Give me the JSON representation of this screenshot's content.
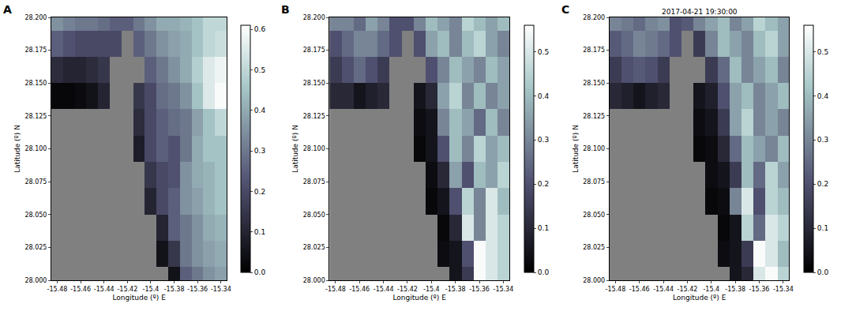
{
  "chart_data": [
    {
      "type": "heatmap",
      "panel": "A",
      "xlabel": "Longitude (º) E",
      "ylabel": "Latitude (º) N",
      "x": [
        -15.48,
        -15.47,
        -15.46,
        -15.45,
        -15.44,
        -15.43,
        -15.42,
        -15.41,
        -15.4,
        -15.39,
        -15.38,
        -15.37,
        -15.36,
        -15.35,
        -15.34
      ],
      "y": [
        28.0,
        28.02,
        28.04,
        28.06,
        28.08,
        28.1,
        28.12,
        28.14,
        28.16,
        28.18,
        28.2
      ],
      "z": [
        [
          null,
          null,
          null,
          null,
          null,
          null,
          null,
          null,
          null,
          null,
          0.05,
          0.25,
          0.3,
          0.35,
          0.38
        ],
        [
          null,
          null,
          null,
          null,
          null,
          null,
          null,
          null,
          null,
          0.05,
          0.15,
          0.3,
          0.35,
          0.38,
          0.4
        ],
        [
          null,
          null,
          null,
          null,
          null,
          null,
          null,
          null,
          null,
          0.1,
          0.25,
          0.3,
          0.35,
          0.4,
          0.42
        ],
        [
          null,
          null,
          null,
          null,
          null,
          null,
          null,
          null,
          0.1,
          0.2,
          0.25,
          0.35,
          0.38,
          0.42,
          0.45
        ],
        [
          null,
          null,
          null,
          null,
          null,
          null,
          null,
          null,
          0.15,
          0.2,
          0.22,
          0.35,
          0.4,
          0.42,
          0.45
        ],
        [
          null,
          null,
          null,
          null,
          null,
          null,
          null,
          0.08,
          0.2,
          0.25,
          0.22,
          0.3,
          0.4,
          0.45,
          0.45
        ],
        [
          null,
          null,
          null,
          null,
          null,
          null,
          null,
          0.12,
          0.2,
          0.25,
          0.28,
          0.3,
          0.38,
          0.45,
          0.5
        ],
        [
          0.02,
          0.02,
          0.03,
          0.05,
          0.1,
          null,
          null,
          0.15,
          0.2,
          0.28,
          0.3,
          0.35,
          0.45,
          0.55,
          0.6
        ],
        [
          0.12,
          0.1,
          0.1,
          0.12,
          0.15,
          null,
          null,
          null,
          0.25,
          0.3,
          0.35,
          0.4,
          0.48,
          0.55,
          0.58
        ],
        [
          0.25,
          0.22,
          0.2,
          0.2,
          0.2,
          0.2,
          null,
          0.25,
          0.3,
          0.35,
          0.38,
          0.4,
          0.45,
          0.5,
          0.52
        ],
        [
          0.35,
          0.32,
          0.3,
          0.3,
          0.28,
          0.25,
          0.25,
          0.3,
          0.35,
          0.4,
          0.4,
          0.42,
          0.45,
          0.5,
          0.5
        ]
      ],
      "xlim": [
        -15.485,
        -15.335
      ],
      "xticks": [
        -15.48,
        -15.46,
        -15.44,
        -15.42,
        -15.4,
        -15.38,
        -15.36,
        -15.34
      ],
      "ylim": [
        28.0,
        28.2
      ],
      "yticks": [
        {
          "value": 28.0,
          "label": "28.000"
        },
        28.025,
        {
          "value": 28.05,
          "label": "28.050"
        },
        28.075,
        {
          "value": 28.1,
          "label": "28.100"
        },
        28.125,
        {
          "value": 28.15,
          "label": "28.150"
        },
        28.175,
        {
          "value": 28.2,
          "label": "28.200"
        }
      ],
      "colorbar": {
        "range": [
          0,
          0.61
        ],
        "ticks": [
          {
            "value": 0,
            "label": "0.0"
          },
          0.1,
          0.2,
          0.3,
          0.4,
          0.5,
          0.6
        ]
      }
    },
    {
      "type": "heatmap",
      "panel": "B",
      "xlabel": "Longitude (º) E",
      "ylabel": "Latitude (º) N",
      "x": [
        -15.48,
        -15.47,
        -15.46,
        -15.45,
        -15.44,
        -15.43,
        -15.42,
        -15.41,
        -15.4,
        -15.39,
        -15.38,
        -15.37,
        -15.36,
        -15.35,
        -15.34
      ],
      "y": [
        28.0,
        28.02,
        28.04,
        28.06,
        28.08,
        28.1,
        28.12,
        28.14,
        28.16,
        28.18,
        28.2
      ],
      "z": [
        [
          null,
          null,
          null,
          null,
          null,
          null,
          null,
          null,
          null,
          null,
          0.05,
          0.15,
          0.55,
          0.5,
          0.45
        ],
        [
          null,
          null,
          null,
          null,
          null,
          null,
          null,
          null,
          null,
          0.03,
          0.05,
          0.2,
          0.55,
          0.5,
          0.45
        ],
        [
          null,
          null,
          null,
          null,
          null,
          null,
          null,
          null,
          null,
          0.02,
          0.1,
          0.5,
          0.3,
          0.5,
          0.45
        ],
        [
          null,
          null,
          null,
          null,
          null,
          null,
          null,
          null,
          0.02,
          0.05,
          0.2,
          0.45,
          0.3,
          0.5,
          0.4
        ],
        [
          null,
          null,
          null,
          null,
          null,
          null,
          null,
          null,
          0.03,
          0.1,
          0.35,
          0.2,
          0.4,
          0.35,
          0.45
        ],
        [
          null,
          null,
          null,
          null,
          null,
          null,
          null,
          0.02,
          0.05,
          0.2,
          0.4,
          0.3,
          0.45,
          0.35,
          0.4
        ],
        [
          null,
          null,
          null,
          null,
          null,
          null,
          null,
          0.03,
          0.05,
          0.3,
          0.4,
          0.35,
          0.25,
          0.4,
          0.3
        ],
        [
          0.1,
          0.1,
          0.05,
          0.08,
          0.1,
          null,
          null,
          0.05,
          0.1,
          0.35,
          0.45,
          0.3,
          0.4,
          0.3,
          0.35
        ],
        [
          0.15,
          0.2,
          0.25,
          0.2,
          0.15,
          null,
          null,
          null,
          0.2,
          0.3,
          0.4,
          0.35,
          0.3,
          0.4,
          0.35
        ],
        [
          0.2,
          0.25,
          0.3,
          0.3,
          0.25,
          0.2,
          null,
          0.2,
          0.35,
          0.4,
          0.3,
          0.4,
          0.45,
          0.35,
          0.3
        ],
        [
          0.3,
          0.3,
          0.25,
          0.35,
          0.3,
          0.2,
          0.2,
          0.3,
          0.4,
          0.35,
          0.3,
          0.45,
          0.4,
          0.35,
          0.4
        ]
      ],
      "xlim": [
        -15.485,
        -15.335
      ],
      "xticks": [
        -15.48,
        -15.46,
        -15.44,
        -15.42,
        -15.4,
        -15.38,
        -15.36,
        -15.34
      ],
      "ylim": [
        28.0,
        28.2
      ],
      "yticks": [
        {
          "value": 28.0,
          "label": "28.000"
        },
        28.025,
        {
          "value": 28.05,
          "label": "28.050"
        },
        28.075,
        {
          "value": 28.1,
          "label": "28.100"
        },
        28.125,
        {
          "value": 28.15,
          "label": "28.150"
        },
        28.175,
        {
          "value": 28.2,
          "label": "28.200"
        }
      ],
      "colorbar": {
        "range": [
          0,
          0.56
        ],
        "ticks": [
          {
            "value": 0,
            "label": "0.0"
          },
          0.1,
          0.2,
          0.3,
          0.4,
          0.5
        ]
      }
    },
    {
      "type": "heatmap",
      "panel": "C",
      "title": "2017-04-21 19:30:00",
      "xlabel": "Longitude (º) E",
      "ylabel": "Latitude (º) N",
      "x": [
        -15.48,
        -15.47,
        -15.46,
        -15.45,
        -15.44,
        -15.43,
        -15.42,
        -15.41,
        -15.4,
        -15.39,
        -15.38,
        -15.37,
        -15.36,
        -15.35,
        -15.34
      ],
      "y": [
        28.0,
        28.02,
        28.04,
        28.06,
        28.08,
        28.1,
        28.12,
        28.14,
        28.16,
        28.18,
        28.2
      ],
      "z": [
        [
          null,
          null,
          null,
          null,
          null,
          null,
          null,
          null,
          null,
          null,
          0.05,
          0.1,
          0.5,
          0.55,
          0.45
        ],
        [
          null,
          null,
          null,
          null,
          null,
          null,
          null,
          null,
          null,
          0.03,
          0.05,
          0.15,
          0.55,
          0.5,
          0.4
        ],
        [
          null,
          null,
          null,
          null,
          null,
          null,
          null,
          null,
          null,
          0.02,
          0.05,
          0.45,
          0.25,
          0.5,
          0.45
        ],
        [
          null,
          null,
          null,
          null,
          null,
          null,
          null,
          null,
          0.02,
          0.03,
          0.3,
          0.5,
          0.2,
          0.45,
          0.4
        ],
        [
          null,
          null,
          null,
          null,
          null,
          null,
          null,
          null,
          0.03,
          0.05,
          0.15,
          0.4,
          0.25,
          0.45,
          0.35
        ],
        [
          null,
          null,
          null,
          null,
          null,
          null,
          null,
          0.02,
          0.03,
          0.1,
          0.25,
          0.4,
          0.35,
          0.3,
          0.4
        ],
        [
          null,
          null,
          null,
          null,
          null,
          null,
          null,
          0.03,
          0.05,
          0.15,
          0.35,
          0.45,
          0.3,
          0.35,
          0.3
        ],
        [
          0.1,
          0.08,
          0.05,
          0.08,
          0.1,
          null,
          null,
          0.05,
          0.08,
          0.2,
          0.35,
          0.4,
          0.3,
          0.35,
          0.4
        ],
        [
          0.15,
          0.2,
          0.22,
          0.2,
          0.15,
          null,
          null,
          null,
          0.15,
          0.25,
          0.4,
          0.3,
          0.35,
          0.4,
          0.3
        ],
        [
          0.22,
          0.25,
          0.3,
          0.28,
          0.25,
          0.2,
          null,
          0.15,
          0.3,
          0.4,
          0.35,
          0.3,
          0.4,
          0.45,
          0.35
        ],
        [
          0.3,
          0.28,
          0.25,
          0.3,
          0.32,
          0.2,
          0.22,
          0.3,
          0.35,
          0.4,
          0.3,
          0.35,
          0.45,
          0.4,
          0.35
        ]
      ],
      "xlim": [
        -15.485,
        -15.335
      ],
      "xticks": [
        -15.48,
        -15.46,
        -15.44,
        -15.42,
        -15.4,
        -15.38,
        -15.36,
        -15.34
      ],
      "ylim": [
        28.0,
        28.2
      ],
      "yticks": [
        {
          "value": 28.0,
          "label": "28.000"
        },
        28.025,
        {
          "value": 28.05,
          "label": "28.050"
        },
        28.075,
        {
          "value": 28.1,
          "label": "28.100"
        },
        28.125,
        {
          "value": 28.15,
          "label": "28.150"
        },
        28.175,
        {
          "value": 28.2,
          "label": "28.200"
        }
      ],
      "colorbar": {
        "range": [
          0,
          0.56
        ],
        "ticks": [
          {
            "value": 0,
            "label": "0.0"
          },
          0.1,
          0.2,
          0.3,
          0.4,
          0.5
        ]
      }
    }
  ]
}
